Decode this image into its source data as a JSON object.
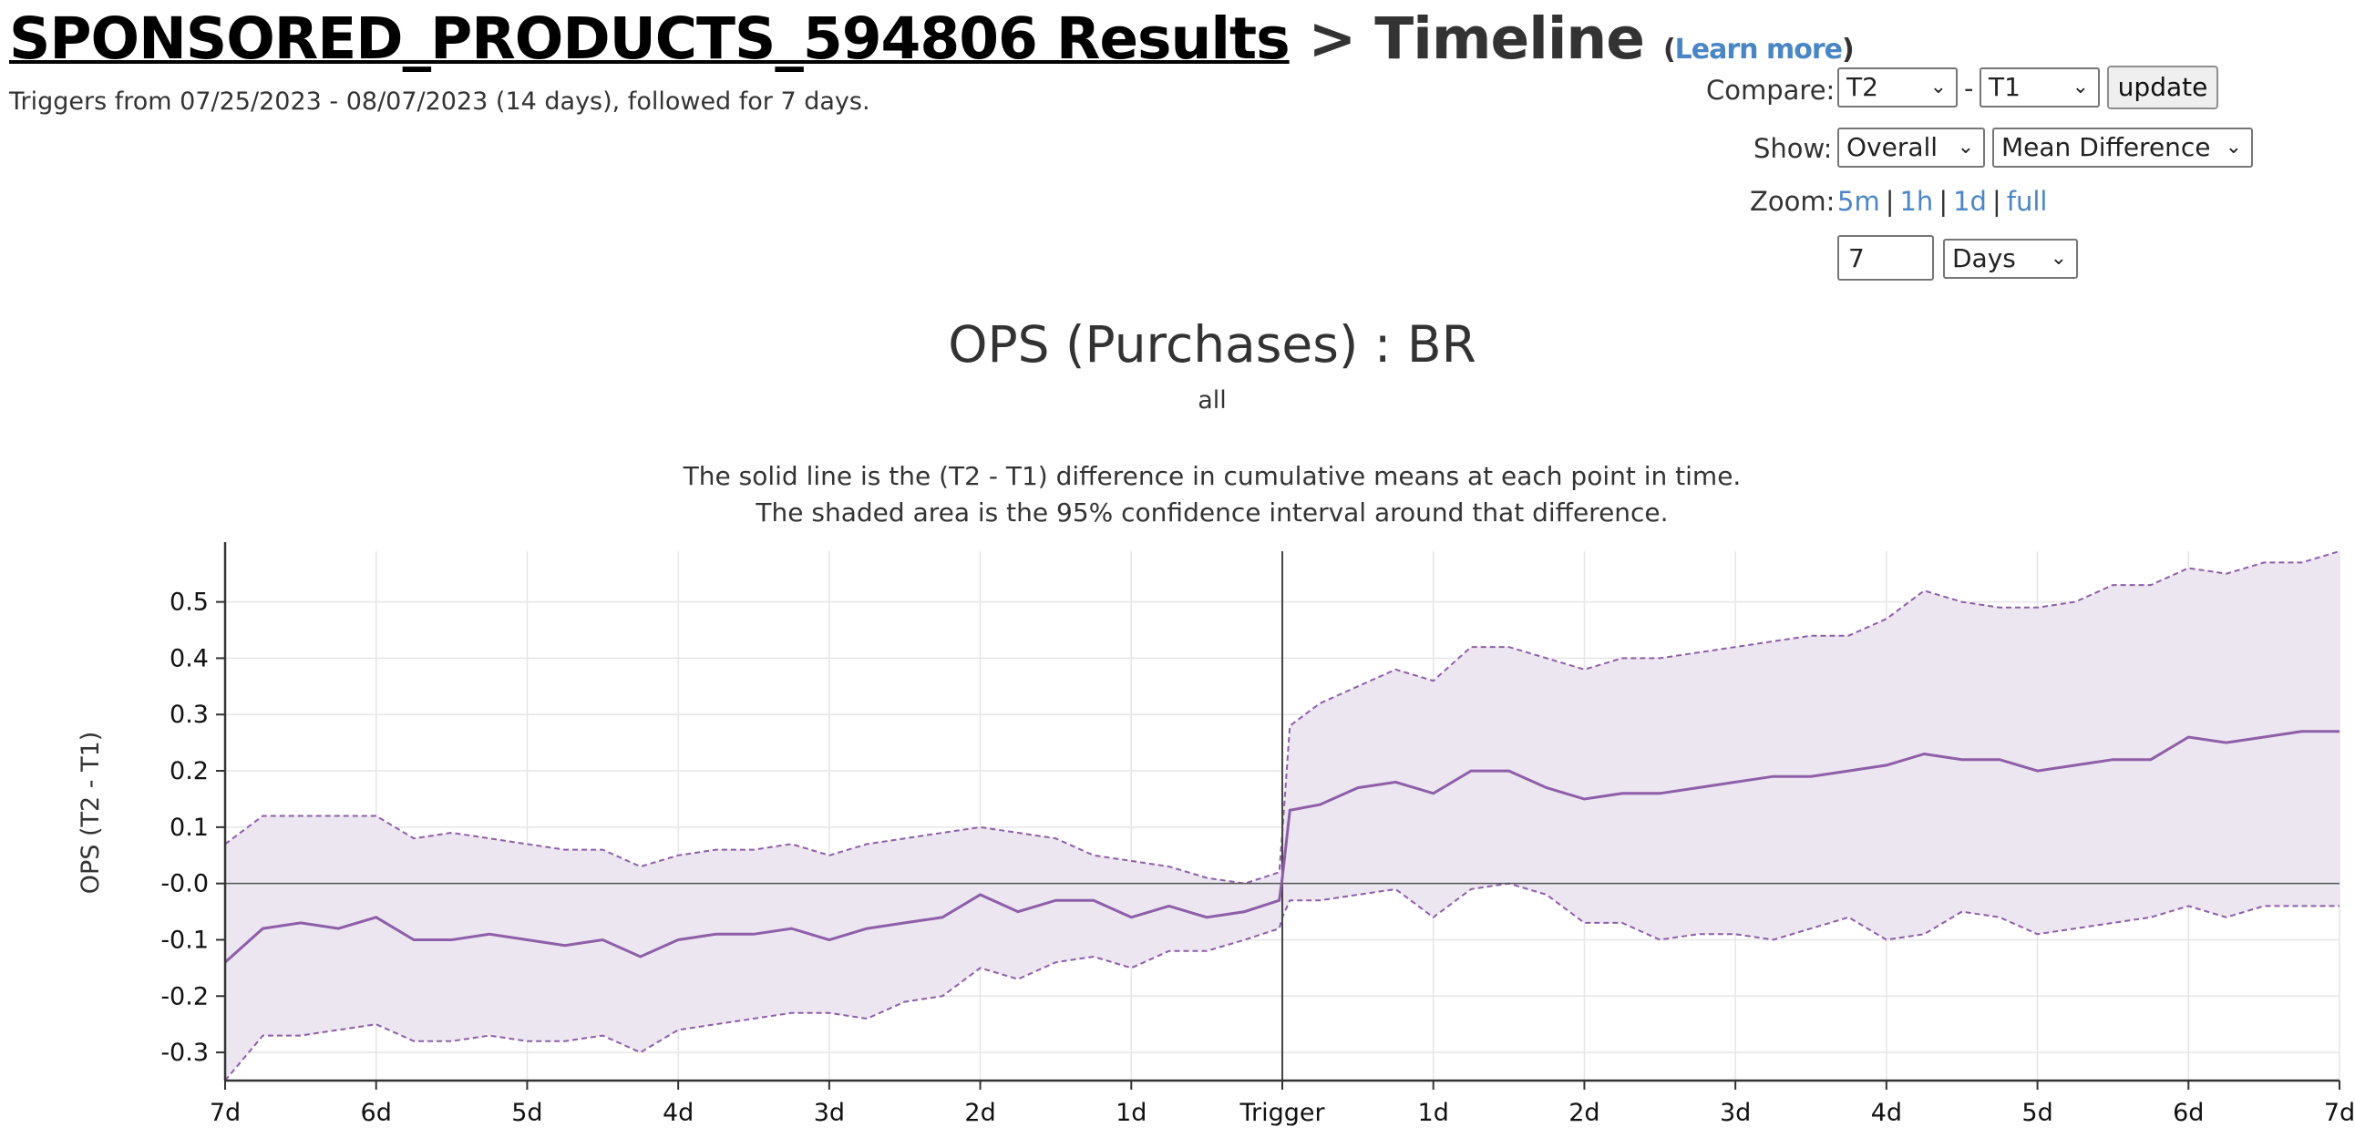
{
  "header": {
    "experiment_link": "SPONSORED_PRODUCTS_594806 Results",
    "separator": " > ",
    "page_name": "Timeline",
    "learn_more_open": "(",
    "learn_more": "Learn more",
    "learn_more_close": ")",
    "subtitle": "Triggers from 07/25/2023 - 08/07/2023 (14 days), followed for 7 days."
  },
  "controls": {
    "compare_label": "Compare:",
    "compare_a": "T2",
    "compare_dash": "-",
    "compare_b": "T1",
    "update_label": "update",
    "show_label": "Show:",
    "show_scope": "Overall",
    "show_metric": "Mean Difference",
    "zoom_label": "Zoom:",
    "zoom_options": [
      "5m",
      "1h",
      "1d",
      "full"
    ],
    "zoom_separator": "|",
    "duration_value": "7",
    "duration_unit": "Days"
  },
  "chart_data": {
    "type": "line",
    "title": "OPS (Purchases) : BR",
    "subtitle": "all",
    "description_1": "The solid line is the (T2 - T1) difference in cumulative means at each point in time.",
    "description_2": "The shaded area is the 95% confidence interval around that difference.",
    "ylabel": "OPS (T2 - T1)",
    "ylim": [
      -0.35,
      0.59
    ],
    "y_ticks": [
      -0.3,
      -0.2,
      -0.1,
      0.0,
      0.1,
      0.2,
      0.3,
      0.4,
      0.5
    ],
    "y_tick_labels": [
      "-0.3",
      "-0.2",
      "-0.1",
      "-0.0",
      "0.1",
      "0.2",
      "0.3",
      "0.4",
      "0.5"
    ],
    "x_tick_labels": [
      "7d",
      "6d",
      "5d",
      "4d",
      "3d",
      "2d",
      "1d",
      "Trigger",
      "1d",
      "2d",
      "3d",
      "4d",
      "5d",
      "6d",
      "7d"
    ],
    "x_unit": "days relative to trigger",
    "xlim": [
      -7,
      7
    ],
    "grid": true,
    "colors": {
      "line": "#8e5ea8",
      "band": "#ece6f1",
      "band_edge": "#8e5ea8",
      "axis": "#333333",
      "grid": "#e6e6e6"
    },
    "series": [
      {
        "name": "mean",
        "x": [
          -7,
          -6.75,
          -6.5,
          -6.25,
          -6,
          -5.75,
          -5.5,
          -5.25,
          -5,
          -4.75,
          -4.5,
          -4.25,
          -4,
          -3.75,
          -3.5,
          -3.25,
          -3,
          -2.75,
          -2.5,
          -2.25,
          -2,
          -1.75,
          -1.5,
          -1.25,
          -1,
          -0.75,
          -0.5,
          -0.25,
          -0.02,
          0,
          0.05,
          0.25,
          0.5,
          0.75,
          1,
          1.25,
          1.5,
          1.75,
          2,
          2.25,
          2.5,
          2.75,
          3,
          3.25,
          3.5,
          3.75,
          4,
          4.25,
          4.5,
          4.75,
          5,
          5.25,
          5.5,
          5.75,
          6,
          6.25,
          6.5,
          6.75,
          7
        ],
        "y": [
          -0.14,
          -0.08,
          -0.07,
          -0.08,
          -0.06,
          -0.1,
          -0.1,
          -0.09,
          -0.1,
          -0.11,
          -0.1,
          -0.13,
          -0.1,
          -0.09,
          -0.09,
          -0.08,
          -0.1,
          -0.08,
          -0.07,
          -0.06,
          -0.02,
          -0.05,
          -0.03,
          -0.03,
          -0.06,
          -0.04,
          -0.06,
          -0.05,
          -0.03,
          0.01,
          0.13,
          0.14,
          0.17,
          0.18,
          0.16,
          0.2,
          0.2,
          0.17,
          0.15,
          0.16,
          0.16,
          0.17,
          0.18,
          0.19,
          0.19,
          0.2,
          0.21,
          0.23,
          0.22,
          0.22,
          0.2,
          0.21,
          0.22,
          0.22,
          0.26,
          0.25,
          0.26,
          0.27,
          0.27
        ]
      },
      {
        "name": "upper",
        "x": [
          -7,
          -6.75,
          -6.5,
          -6.25,
          -6,
          -5.75,
          -5.5,
          -5.25,
          -5,
          -4.75,
          -4.5,
          -4.25,
          -4,
          -3.75,
          -3.5,
          -3.25,
          -3,
          -2.75,
          -2.5,
          -2.25,
          -2,
          -1.75,
          -1.5,
          -1.25,
          -1,
          -0.75,
          -0.5,
          -0.25,
          -0.02,
          0,
          0.05,
          0.25,
          0.5,
          0.75,
          1,
          1.25,
          1.5,
          1.75,
          2,
          2.25,
          2.5,
          2.75,
          3,
          3.25,
          3.5,
          3.75,
          4,
          4.25,
          4.5,
          4.75,
          5,
          5.25,
          5.5,
          5.75,
          6,
          6.25,
          6.5,
          6.75,
          7
        ],
        "y": [
          0.07,
          0.12,
          0.12,
          0.12,
          0.12,
          0.08,
          0.09,
          0.08,
          0.07,
          0.06,
          0.06,
          0.03,
          0.05,
          0.06,
          0.06,
          0.07,
          0.05,
          0.07,
          0.08,
          0.09,
          0.1,
          0.09,
          0.08,
          0.05,
          0.04,
          0.03,
          0.01,
          0.0,
          0.02,
          0.09,
          0.28,
          0.32,
          0.35,
          0.38,
          0.36,
          0.42,
          0.42,
          0.4,
          0.38,
          0.4,
          0.4,
          0.41,
          0.42,
          0.43,
          0.44,
          0.44,
          0.47,
          0.52,
          0.5,
          0.49,
          0.49,
          0.5,
          0.53,
          0.53,
          0.56,
          0.55,
          0.57,
          0.57,
          0.59
        ]
      },
      {
        "name": "lower",
        "x": [
          -7,
          -6.75,
          -6.5,
          -6.25,
          -6,
          -5.75,
          -5.5,
          -5.25,
          -5,
          -4.75,
          -4.5,
          -4.25,
          -4,
          -3.75,
          -3.5,
          -3.25,
          -3,
          -2.75,
          -2.5,
          -2.25,
          -2,
          -1.75,
          -1.5,
          -1.25,
          -1,
          -0.75,
          -0.5,
          -0.25,
          -0.02,
          0,
          0.05,
          0.25,
          0.5,
          0.75,
          1,
          1.25,
          1.5,
          1.75,
          2,
          2.25,
          2.5,
          2.75,
          3,
          3.25,
          3.5,
          3.75,
          4,
          4.25,
          4.5,
          4.75,
          5,
          5.25,
          5.5,
          5.75,
          6,
          6.25,
          6.5,
          6.75,
          7
        ],
        "y": [
          -0.35,
          -0.27,
          -0.27,
          -0.26,
          -0.25,
          -0.28,
          -0.28,
          -0.27,
          -0.28,
          -0.28,
          -0.27,
          -0.3,
          -0.26,
          -0.25,
          -0.24,
          -0.23,
          -0.23,
          -0.24,
          -0.21,
          -0.2,
          -0.15,
          -0.17,
          -0.14,
          -0.13,
          -0.15,
          -0.12,
          -0.12,
          -0.1,
          -0.08,
          -0.06,
          -0.03,
          -0.03,
          -0.02,
          -0.01,
          -0.06,
          -0.01,
          0.0,
          -0.02,
          -0.07,
          -0.07,
          -0.1,
          -0.09,
          -0.09,
          -0.1,
          -0.08,
          -0.06,
          -0.1,
          -0.09,
          -0.05,
          -0.06,
          -0.09,
          -0.08,
          -0.07,
          -0.06,
          -0.04,
          -0.06,
          -0.04,
          -0.04,
          -0.04
        ]
      }
    ]
  }
}
